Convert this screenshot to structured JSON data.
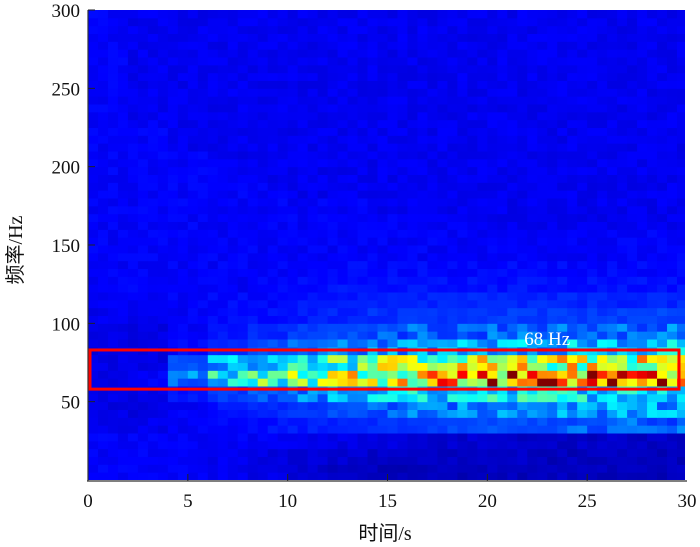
{
  "chart_data": {
    "type": "heatmap",
    "title": "",
    "xlabel": "时间/s",
    "ylabel": "频率/Hz",
    "xlim": [
      0,
      30
    ],
    "ylim": [
      0,
      300
    ],
    "xticks": [
      "0",
      "5",
      "10",
      "15",
      "20",
      "25",
      "30"
    ],
    "yticks": [
      "50",
      "100",
      "150",
      "200",
      "250",
      "300"
    ],
    "colormap": "jet",
    "time_bins_s": [
      0,
      2,
      4,
      6,
      8,
      10,
      12,
      14,
      16,
      18,
      20,
      22,
      24,
      26,
      28,
      30
    ],
    "freq_bins_hz": [
      0,
      10,
      20,
      30,
      40,
      50,
      60,
      70,
      80,
      90,
      100,
      110,
      120,
      130,
      140,
      150,
      160,
      170,
      180,
      190,
      200,
      210,
      220,
      230,
      240,
      250,
      260,
      270,
      280,
      290,
      300
    ],
    "intensity_rows_low_to_high_freq": [
      [
        0.12,
        0.12,
        0.12,
        0.11,
        0.1,
        0.08,
        0.07,
        0.06,
        0.06,
        0.06,
        0.06,
        0.06,
        0.06,
        0.06,
        0.06
      ],
      [
        0.12,
        0.12,
        0.12,
        0.11,
        0.1,
        0.09,
        0.08,
        0.07,
        0.07,
        0.07,
        0.07,
        0.06,
        0.06,
        0.06,
        0.06
      ],
      [
        0.12,
        0.12,
        0.12,
        0.12,
        0.12,
        0.11,
        0.1,
        0.09,
        0.08,
        0.08,
        0.07,
        0.07,
        0.07,
        0.07,
        0.07
      ],
      [
        0.11,
        0.11,
        0.12,
        0.13,
        0.14,
        0.15,
        0.16,
        0.17,
        0.18,
        0.19,
        0.2,
        0.2,
        0.21,
        0.22,
        0.22
      ],
      [
        0.1,
        0.1,
        0.12,
        0.14,
        0.16,
        0.18,
        0.2,
        0.22,
        0.24,
        0.25,
        0.26,
        0.27,
        0.28,
        0.28,
        0.28
      ],
      [
        0.1,
        0.1,
        0.14,
        0.18,
        0.22,
        0.25,
        0.28,
        0.32,
        0.34,
        0.35,
        0.36,
        0.36,
        0.36,
        0.36,
        0.36
      ],
      [
        0.1,
        0.12,
        0.25,
        0.38,
        0.45,
        0.5,
        0.58,
        0.65,
        0.7,
        0.74,
        0.78,
        0.8,
        0.8,
        0.8,
        0.82
      ],
      [
        0.1,
        0.1,
        0.2,
        0.3,
        0.35,
        0.4,
        0.45,
        0.5,
        0.52,
        0.55,
        0.56,
        0.56,
        0.57,
        0.57,
        0.58
      ],
      [
        0.1,
        0.1,
        0.13,
        0.16,
        0.2,
        0.22,
        0.25,
        0.27,
        0.28,
        0.3,
        0.3,
        0.3,
        0.31,
        0.31,
        0.32
      ],
      [
        0.1,
        0.1,
        0.12,
        0.14,
        0.16,
        0.18,
        0.2,
        0.21,
        0.22,
        0.22,
        0.23,
        0.23,
        0.23,
        0.23,
        0.24
      ],
      [
        0.11,
        0.11,
        0.12,
        0.13,
        0.14,
        0.15,
        0.16,
        0.17,
        0.18,
        0.18,
        0.18,
        0.18,
        0.18,
        0.18,
        0.19
      ],
      [
        0.12,
        0.12,
        0.12,
        0.13,
        0.13,
        0.14,
        0.15,
        0.15,
        0.16,
        0.16,
        0.16,
        0.16,
        0.16,
        0.16,
        0.16
      ],
      [
        0.12,
        0.12,
        0.12,
        0.12,
        0.13,
        0.13,
        0.14,
        0.14,
        0.14,
        0.14,
        0.14,
        0.14,
        0.14,
        0.14,
        0.14
      ],
      [
        0.12,
        0.12,
        0.12,
        0.12,
        0.12,
        0.12,
        0.13,
        0.13,
        0.13,
        0.13,
        0.13,
        0.13,
        0.13,
        0.13,
        0.13
      ],
      [
        0.12,
        0.12,
        0.12,
        0.12,
        0.12,
        0.12,
        0.12,
        0.12,
        0.12,
        0.12,
        0.12,
        0.12,
        0.12,
        0.12,
        0.12
      ],
      [
        0.12,
        0.12,
        0.12,
        0.12,
        0.12,
        0.12,
        0.12,
        0.12,
        0.12,
        0.12,
        0.12,
        0.12,
        0.12,
        0.12,
        0.12
      ],
      [
        0.12,
        0.12,
        0.12,
        0.12,
        0.12,
        0.12,
        0.12,
        0.12,
        0.12,
        0.12,
        0.11,
        0.11,
        0.11,
        0.11,
        0.11
      ],
      [
        0.12,
        0.12,
        0.12,
        0.12,
        0.12,
        0.12,
        0.12,
        0.11,
        0.11,
        0.11,
        0.11,
        0.11,
        0.11,
        0.11,
        0.11
      ],
      [
        0.12,
        0.12,
        0.12,
        0.12,
        0.12,
        0.11,
        0.11,
        0.11,
        0.11,
        0.11,
        0.11,
        0.11,
        0.11,
        0.11,
        0.11
      ],
      [
        0.12,
        0.12,
        0.12,
        0.12,
        0.11,
        0.11,
        0.11,
        0.11,
        0.11,
        0.11,
        0.11,
        0.11,
        0.11,
        0.11,
        0.11
      ],
      [
        0.12,
        0.12,
        0.12,
        0.11,
        0.11,
        0.11,
        0.11,
        0.11,
        0.11,
        0.11,
        0.11,
        0.11,
        0.11,
        0.11,
        0.11
      ],
      [
        0.12,
        0.12,
        0.11,
        0.11,
        0.11,
        0.11,
        0.11,
        0.11,
        0.11,
        0.11,
        0.11,
        0.11,
        0.11,
        0.11,
        0.11
      ],
      [
        0.12,
        0.12,
        0.11,
        0.11,
        0.11,
        0.11,
        0.11,
        0.11,
        0.11,
        0.11,
        0.11,
        0.11,
        0.11,
        0.11,
        0.11
      ],
      [
        0.12,
        0.11,
        0.11,
        0.11,
        0.11,
        0.11,
        0.11,
        0.11,
        0.11,
        0.11,
        0.11,
        0.11,
        0.11,
        0.11,
        0.11
      ],
      [
        0.12,
        0.11,
        0.11,
        0.11,
        0.11,
        0.11,
        0.11,
        0.11,
        0.11,
        0.11,
        0.11,
        0.11,
        0.11,
        0.11,
        0.11
      ],
      [
        0.12,
        0.11,
        0.11,
        0.11,
        0.11,
        0.11,
        0.11,
        0.11,
        0.11,
        0.11,
        0.11,
        0.11,
        0.11,
        0.11,
        0.11
      ],
      [
        0.12,
        0.11,
        0.11,
        0.11,
        0.11,
        0.11,
        0.11,
        0.11,
        0.11,
        0.11,
        0.11,
        0.11,
        0.11,
        0.11,
        0.11
      ],
      [
        0.12,
        0.11,
        0.11,
        0.11,
        0.11,
        0.11,
        0.11,
        0.11,
        0.11,
        0.11,
        0.11,
        0.11,
        0.11,
        0.11,
        0.11
      ],
      [
        0.12,
        0.11,
        0.11,
        0.11,
        0.11,
        0.11,
        0.11,
        0.11,
        0.11,
        0.11,
        0.11,
        0.11,
        0.11,
        0.11,
        0.11
      ],
      [
        0.12,
        0.11,
        0.11,
        0.11,
        0.11,
        0.11,
        0.11,
        0.11,
        0.11,
        0.11,
        0.11,
        0.11,
        0.11,
        0.11,
        0.11
      ]
    ],
    "highlight_box": {
      "t_range": [
        0.1,
        29.6
      ],
      "f_range": [
        58,
        83
      ],
      "color": "#ff0000"
    },
    "annotation": {
      "text": "68 Hz",
      "t": 23,
      "f": 90,
      "color": "#ffffff"
    },
    "grid": false,
    "legend": "none"
  }
}
